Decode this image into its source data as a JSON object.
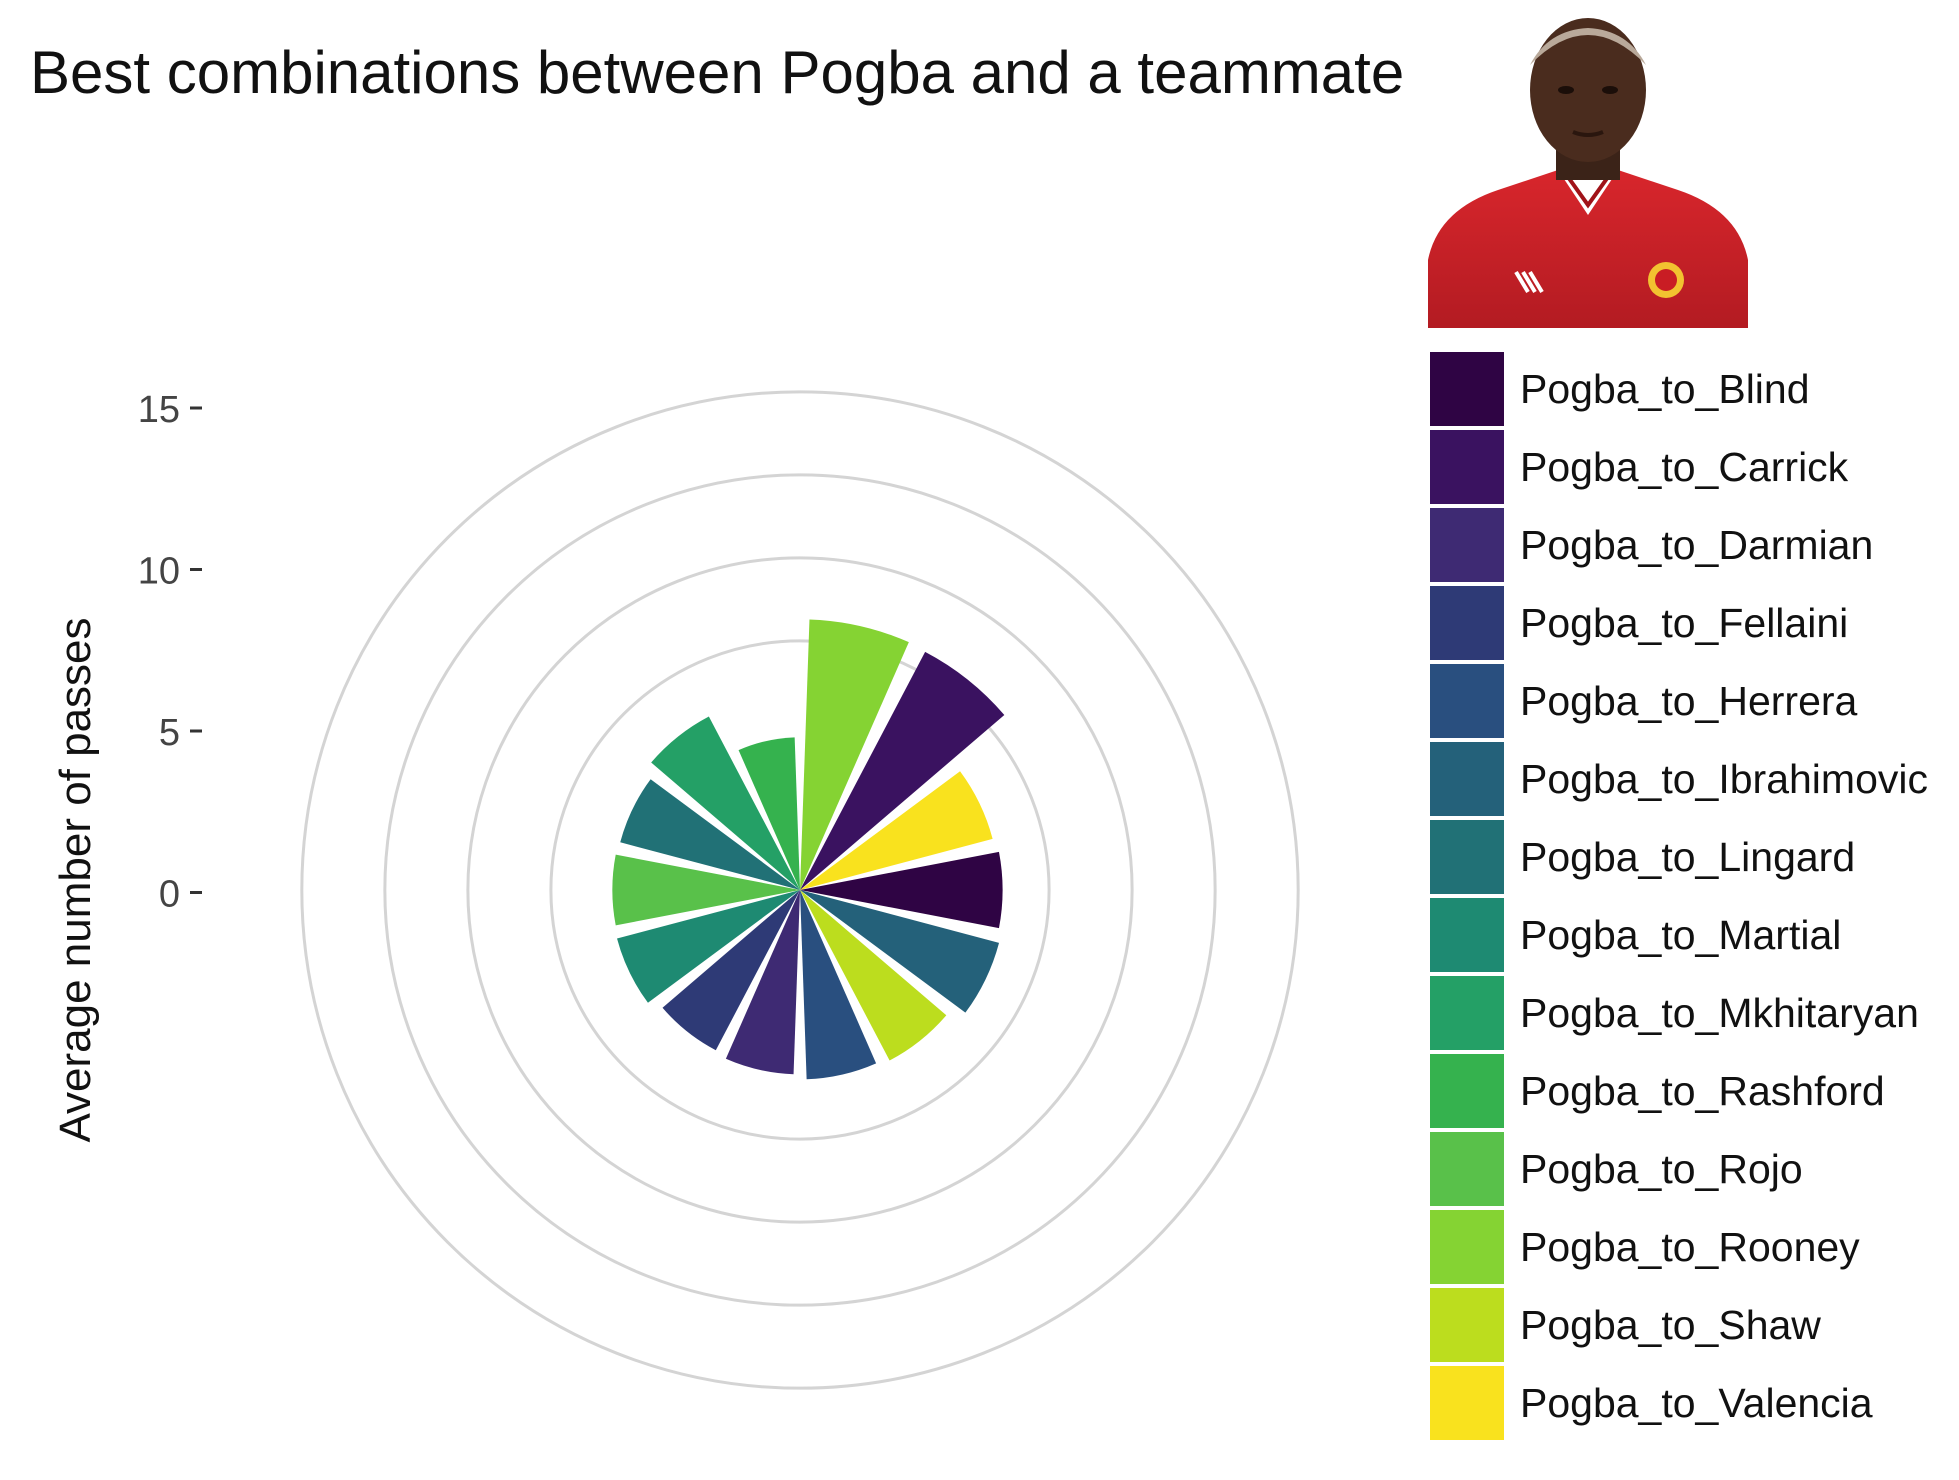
{
  "chart_data": {
    "type": "polar-bar",
    "title": "Best combinations between Pogba and a teammate",
    "ylabel": "Average number of passes",
    "yticks": [
      0,
      5,
      10,
      15
    ],
    "ylim": [
      -15,
      18
    ],
    "categories": [
      "Pogba_to_Blind",
      "Pogba_to_Carrick",
      "Pogba_to_Darmian",
      "Pogba_to_Fellaini",
      "Pogba_to_Herrera",
      "Pogba_to_Ibrahimovic",
      "Pogba_to_Lingard",
      "Pogba_to_Martial",
      "Pogba_to_Mkhitaryan",
      "Pogba_to_Rashford",
      "Pogba_to_Rojo",
      "Pogba_to_Rooney",
      "Pogba_to_Shaw",
      "Pogba_to_Valencia"
    ],
    "colors": [
      "#2f0444",
      "#3a1260",
      "#3e2a73",
      "#2e3a76",
      "#294f7f",
      "#24617a",
      "#217176",
      "#1e8a72",
      "#24a066",
      "#35b24e",
      "#59c14a",
      "#85d333",
      "#bcdd1e",
      "#f9e21e"
    ],
    "values": [
      -2.8,
      1.2,
      -3.9,
      -4.1,
      -3.6,
      -2.6,
      -3.8,
      -3.6,
      -3.2,
      -5.8,
      -3.7,
      1.3,
      -3.4,
      -3.0
    ],
    "wedge_order": [
      "Pogba_to_Rooney",
      "Pogba_to_Carrick",
      "Pogba_to_Valencia",
      "Pogba_to_Blind",
      "Pogba_to_Ibrahimovic",
      "Pogba_to_Shaw",
      "Pogba_to_Herrera",
      "Pogba_to_Darmian",
      "Pogba_to_Fellaini",
      "Pogba_to_Martial",
      "Pogba_to_Rojo",
      "Pogba_to_Lingard",
      "Pogba_to_Mkhitaryan",
      "Pogba_to_Rashford"
    ],
    "grid": true,
    "legend_position": "right"
  }
}
